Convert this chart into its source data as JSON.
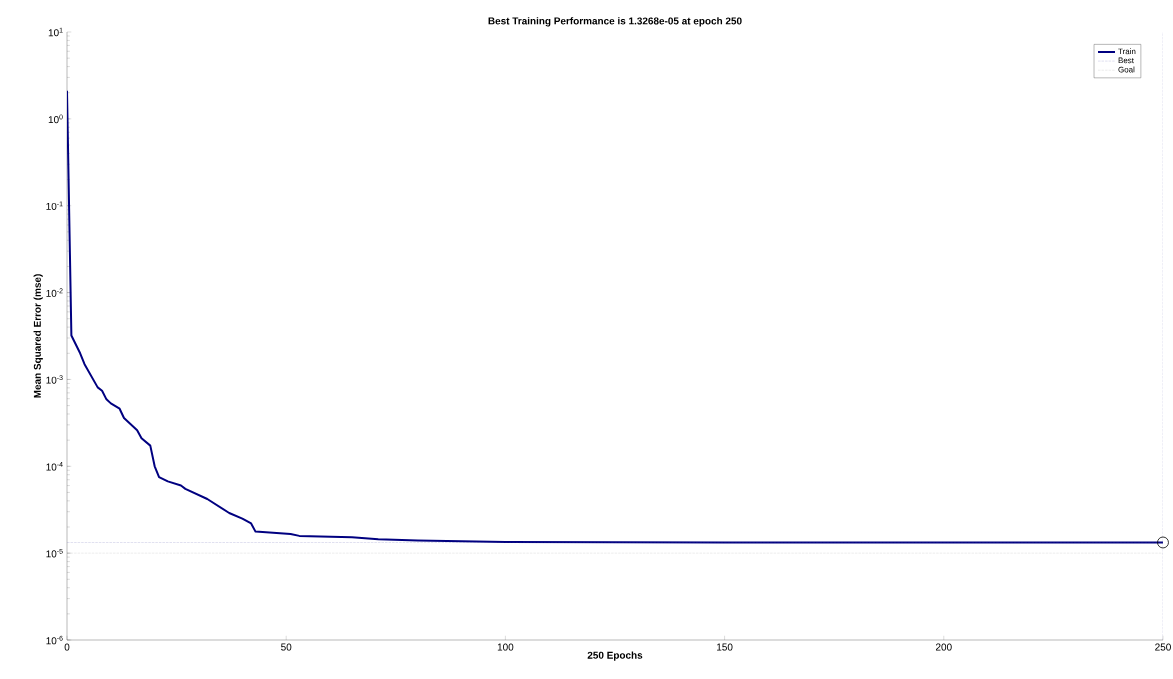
{
  "chart_data": {
    "type": "line",
    "title": "Best Training Performance is 1.3268e-05 at epoch 250",
    "xlabel": "250 Epochs",
    "ylabel": "Mean Squared Error  (mse)",
    "log": "y",
    "xlim": [
      0,
      250
    ],
    "ylim": [
      1e-06,
      10
    ],
    "xticks": [
      0,
      50,
      100,
      150,
      200,
      250
    ],
    "yticks": [
      {
        "value": 1e-06,
        "label": "10$^{-6}$"
      },
      {
        "value": 1e-05,
        "label": "10$^{-5}$"
      },
      {
        "value": 0.0001,
        "label": "10$^{-4}$"
      },
      {
        "value": 0.001,
        "label": "10$^{-3}$"
      },
      {
        "value": 0.01,
        "label": "10$^{-2}$"
      },
      {
        "value": 0.1,
        "label": "10$^{-1}$"
      },
      {
        "value": 1,
        "label": "10$^{0}$"
      },
      {
        "value": 10,
        "label": "10$^{1}$"
      }
    ],
    "grid": false,
    "legend": "top right",
    "series": [
      {
        "name": "Train",
        "color": "#000080",
        "line_style": "solid",
        "x": [
          0,
          1,
          3,
          4,
          7,
          8,
          9,
          10,
          12,
          13,
          16,
          17,
          19,
          20,
          21,
          23,
          26,
          27,
          32,
          37,
          40,
          42,
          43,
          51,
          53,
          65,
          71,
          80,
          100,
          150,
          200,
          250
        ],
        "values": [
          2.1,
          0.0032,
          0.002,
          0.0015,
          0.00081,
          0.00074,
          0.00059,
          0.00053,
          0.00046,
          0.00036,
          0.00026,
          0.00021,
          0.000173,
          0.0001,
          7.5e-05,
          6.7e-05,
          6e-05,
          5.5e-05,
          4.2e-05,
          2.9e-05,
          2.5e-05,
          2.2e-05,
          1.77e-05,
          1.66e-05,
          1.58e-05,
          1.52e-05,
          1.45e-05,
          1.4e-05,
          1.34e-05,
          1.33e-05,
          1.33e-05,
          1.3268e-05
        ]
      },
      {
        "name": "Best",
        "color": "#3c3ca0",
        "line_style": "dotted",
        "x": [
          0,
          250
        ],
        "values": [
          1.3268e-05,
          1.3268e-05
        ]
      },
      {
        "name": "Goal",
        "color": "#8c8c8c",
        "line_style": "dotted",
        "x": [
          0,
          250
        ],
        "values": [
          1e-05,
          1e-05
        ]
      },
      {
        "type": "scatter",
        "marker": "circle",
        "color": "#000000",
        "x": [
          250
        ],
        "values": [
          1.3268e-05
        ]
      }
    ],
    "ref_lines": [
      {
        "axis": "x",
        "value": 250,
        "color": "#3c3ca0",
        "line_style": "dotted"
      }
    ]
  }
}
